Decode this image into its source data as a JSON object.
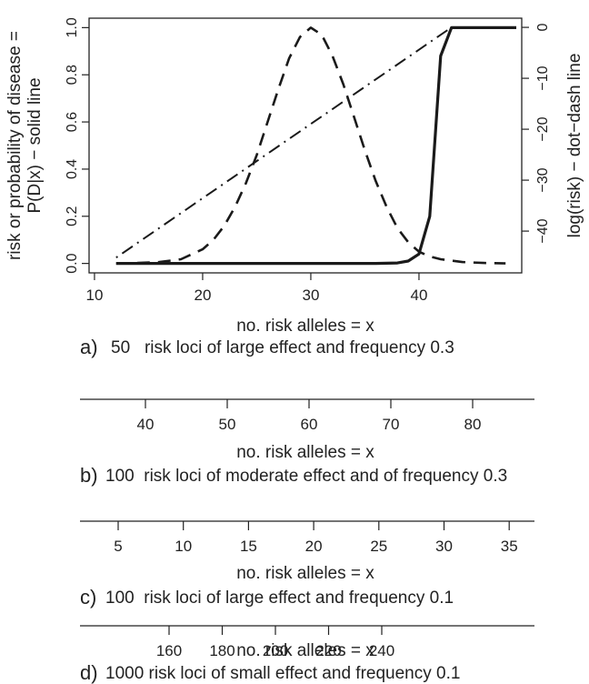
{
  "chart_data": [
    {
      "panel": "a",
      "type": "line",
      "caption_letter": "a)",
      "caption_text": "50   risk loci of large effect and frequency 0.3",
      "xlabel": "no. risk alleles = x",
      "ylabel_left": [
        "risk or probability of disease =",
        "P(D|x) − solid line"
      ],
      "ylabel_right": "log(risk) − dot−dash line",
      "xlim": [
        9.5,
        49.5
      ],
      "ylim_left": [
        -0.04,
        1.04
      ],
      "ylim_right": [
        -48.2,
        1.8
      ],
      "x_ticks": [
        "10",
        "20",
        "30",
        "40"
      ],
      "y_ticks_left": [
        "0.0",
        "0.2",
        "0.4",
        "0.6",
        "0.8",
        "1.0"
      ],
      "y_ticks_right": [
        "−40",
        "−30",
        "−20",
        "−10",
        "0"
      ],
      "series": [
        {
          "style": "solid",
          "axis": "left",
          "x": [
            12,
            20,
            30,
            36,
            38,
            39,
            40,
            41,
            42,
            43,
            44,
            45,
            46,
            47,
            48,
            49
          ],
          "y": [
            0,
            0,
            0,
            0,
            0.002,
            0.01,
            0.04,
            0.2,
            0.88,
            1.0,
            1.0,
            1.0,
            1.0,
            1.0,
            1.0,
            1.0
          ]
        },
        {
          "style": "dashed",
          "axis": "left",
          "x": [
            12,
            14,
            16,
            18,
            20,
            21,
            22,
            23,
            24,
            25,
            26,
            27,
            28,
            29,
            30,
            31,
            32,
            33,
            34,
            35,
            36,
            37,
            38,
            39,
            40,
            41,
            42,
            44,
            46,
            48
          ],
          "y": [
            0.0,
            0.002,
            0.006,
            0.018,
            0.06,
            0.1,
            0.16,
            0.24,
            0.34,
            0.46,
            0.6,
            0.74,
            0.87,
            0.96,
            1.0,
            0.97,
            0.88,
            0.76,
            0.62,
            0.48,
            0.35,
            0.24,
            0.15,
            0.09,
            0.05,
            0.03,
            0.018,
            0.006,
            0.002,
            0.0
          ]
        },
        {
          "style": "dotdash",
          "axis": "right",
          "x": [
            12,
            43
          ],
          "y": [
            -45.2,
            0
          ]
        }
      ]
    },
    {
      "panel": "b",
      "type": "axis",
      "caption_letter": "b)",
      "caption_text": "100  risk loci of moderate effect and of frequency 0.3",
      "xlabel": "no. risk alleles = x",
      "x_ticks": [
        "40",
        "50",
        "60",
        "70",
        "80"
      ]
    },
    {
      "panel": "c",
      "type": "axis",
      "caption_letter": "c)",
      "caption_text": "100  risk loci of large effect and frequency 0.1",
      "xlabel": "no. risk alleles = x",
      "x_ticks": [
        "5",
        "10",
        "15",
        "20",
        "25",
        "30",
        "35"
      ]
    },
    {
      "panel": "d",
      "type": "axis",
      "caption_letter": "d)",
      "caption_text": "1000 risk loci of small effect and frequency 0.1",
      "xlabel": "no. risk alleles = x",
      "x_ticks": [
        "160",
        "180",
        "200",
        "220",
        "240"
      ]
    }
  ]
}
